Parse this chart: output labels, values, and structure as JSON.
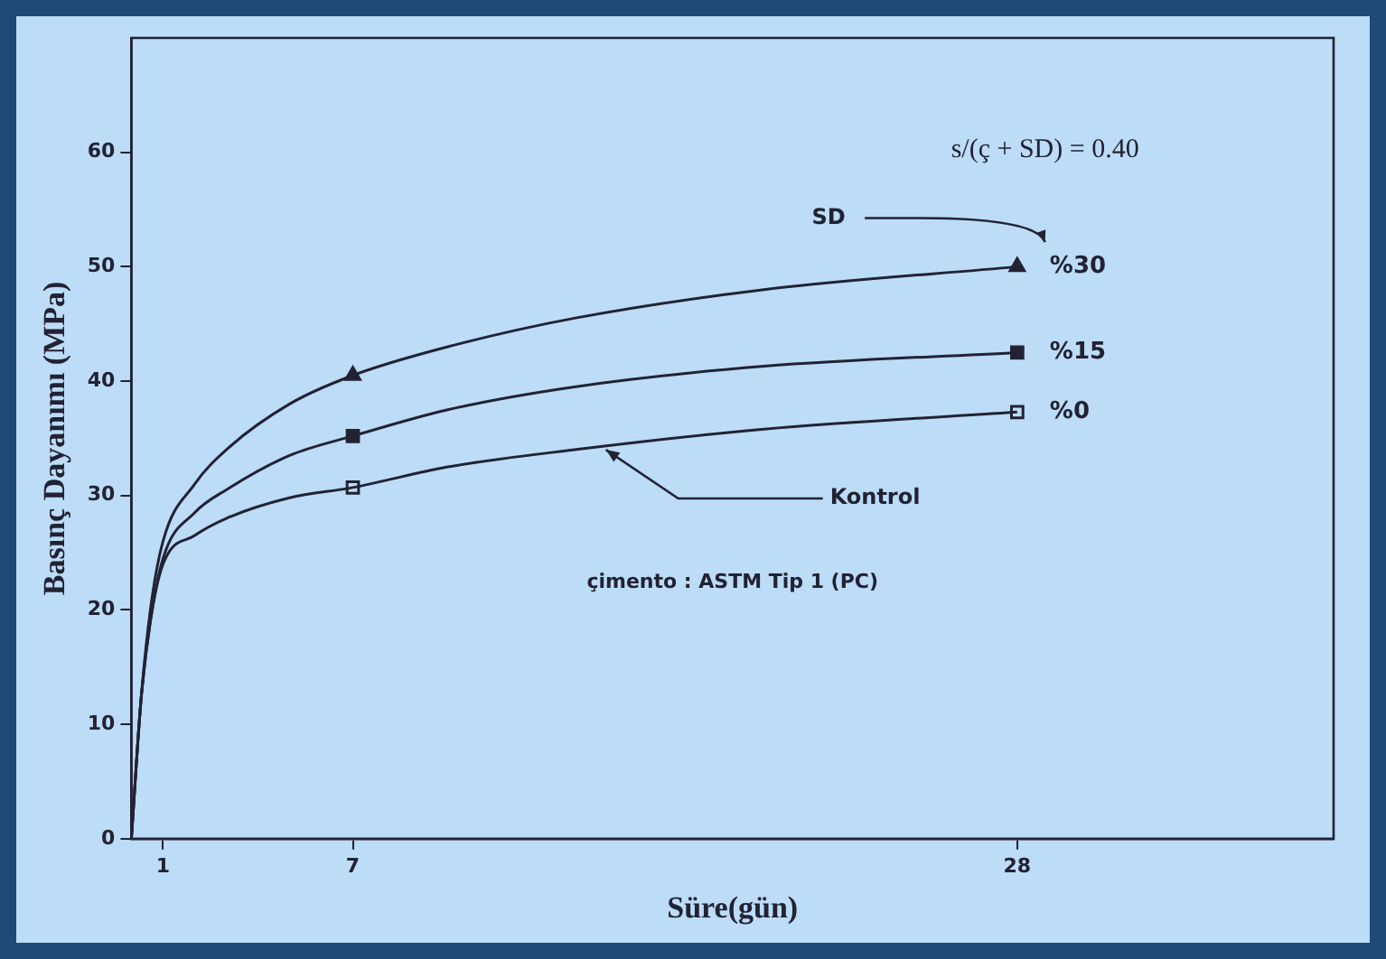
{
  "chart_data": {
    "type": "line",
    "xlabel": "Süre(gün)",
    "ylabel": "Basınç Dayanımı (MPa)",
    "xlim": [
      0,
      38
    ],
    "xticks": [
      1,
      7,
      28
    ],
    "ylim": [
      0,
      70
    ],
    "yticks": [
      0,
      10,
      20,
      30,
      40,
      50,
      60
    ],
    "grid": false,
    "legend": "right",
    "marker": "none",
    "line_style": "solid",
    "series": [
      {
        "name": "%30",
        "color": "#222233",
        "x": [
          0,
          0.3,
          0.6,
          1,
          2,
          3,
          5,
          7,
          10,
          14,
          20,
          28
        ],
        "values": [
          0,
          12,
          20,
          26,
          31,
          34,
          38,
          40.5,
          43,
          45.5,
          48,
          50
        ]
      },
      {
        "name": "%15",
        "color": "#222233",
        "x": [
          0,
          0.3,
          0.6,
          1,
          2,
          3,
          5,
          7,
          10,
          14,
          20,
          28
        ],
        "values": [
          0,
          12,
          19,
          24.5,
          28.5,
          30.5,
          33.5,
          35.2,
          37.5,
          39.5,
          41.3,
          42.5
        ]
      },
      {
        "name": "%0",
        "color": "#222233",
        "x": [
          0,
          0.3,
          0.6,
          1,
          2,
          3,
          5,
          7,
          10,
          14,
          20,
          28
        ],
        "values": [
          0,
          12,
          19,
          24,
          26.5,
          28,
          29.8,
          30.7,
          32.5,
          34,
          35.8,
          37.3
        ]
      },
      {
        "type": "scatter",
        "marker": "triangle",
        "color": "#222233",
        "x": [
          7,
          28
        ],
        "values": [
          40.5,
          50
        ]
      },
      {
        "type": "scatter",
        "marker": "square",
        "color": "#222233",
        "x": [
          7,
          28
        ],
        "values": [
          35.2,
          42.5
        ]
      },
      {
        "type": "scatter",
        "marker": "square_open",
        "color": "#222233",
        "x": [
          7,
          28
        ],
        "values": [
          30.7,
          37.3
        ]
      }
    ],
    "annotations": [
      "s/(ç + SD) = 0.40",
      "çimento : ASTM Tip 1 (PC)",
      "SD",
      {
        "text": "Kontrol",
        "x": 15,
        "y": 34
      }
    ]
  }
}
